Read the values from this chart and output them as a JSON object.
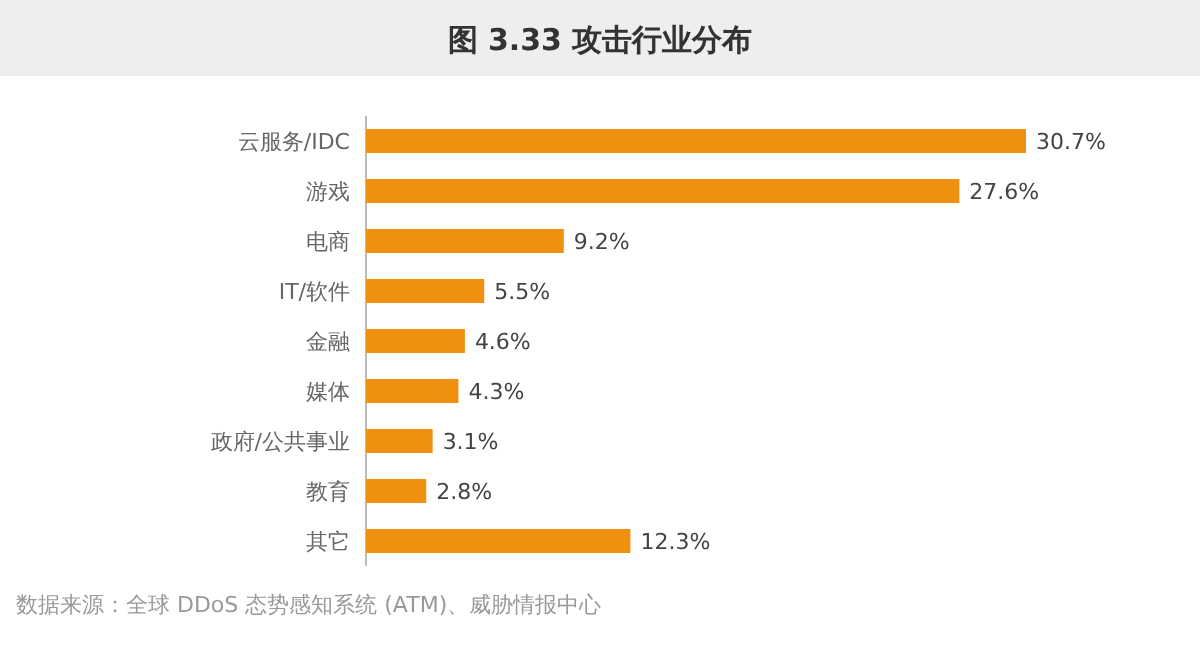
{
  "chart_data": {
    "type": "bar",
    "orientation": "horizontal",
    "title": "图 3.33 攻击行业分布",
    "categories": [
      "云服务/IDC",
      "游戏",
      "电商",
      "IT/软件",
      "金融",
      "媒体",
      "政府/公共事业",
      "教育",
      "其它"
    ],
    "values": [
      30.7,
      27.6,
      9.2,
      5.5,
      4.6,
      4.3,
      3.1,
      2.8,
      12.3
    ],
    "value_labels": [
      "30.7%",
      "27.6%",
      "9.2%",
      "5.5%",
      "4.6%",
      "4.3%",
      "3.1%",
      "2.8%",
      "12.3%"
    ],
    "color": "#f0900f",
    "annotations": [
      "数据来源：全球 DDoS 态势感知系统 (ATM)、威胁情报中心"
    ]
  }
}
